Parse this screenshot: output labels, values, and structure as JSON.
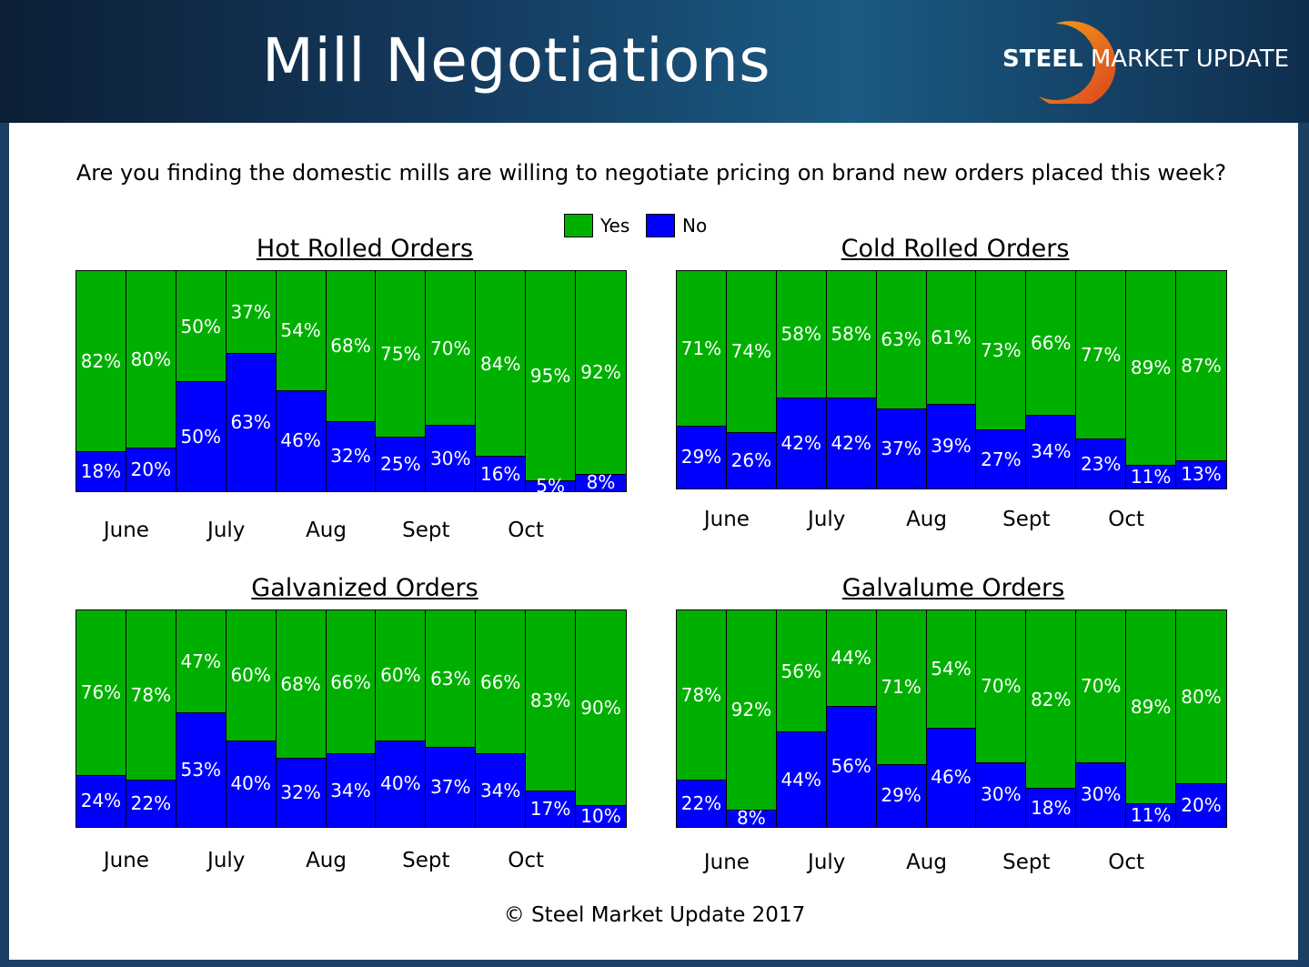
{
  "header": {
    "title": "Mill Negotiations",
    "logo_bold": "STEEL",
    "logo_rest": " MARKET UPDATE"
  },
  "question": "Are you finding the domestic mills are willing to negotiate pricing on brand new orders placed this week?",
  "legend": {
    "yes_label": "Yes",
    "no_label": "No",
    "yes_color": "#00b000",
    "no_color": "#0000ff"
  },
  "footer": "© Steel Market Update 2017",
  "chart_data": [
    {
      "type": "bar",
      "title": "Hot Rolled Orders",
      "months": [
        "June",
        "July",
        "Aug",
        "Sept",
        "Oct"
      ],
      "series": [
        {
          "name": "Yes",
          "values": [
            82,
            80,
            50,
            37,
            54,
            68,
            75,
            70,
            84,
            95,
            92
          ]
        },
        {
          "name": "No",
          "values": [
            18,
            20,
            50,
            63,
            46,
            32,
            25,
            30,
            16,
            5,
            8
          ]
        }
      ],
      "ylim": [
        0,
        100
      ]
    },
    {
      "type": "bar",
      "title": "Cold Rolled Orders",
      "months": [
        "June",
        "July",
        "Aug",
        "Sept",
        "Oct"
      ],
      "series": [
        {
          "name": "Yes",
          "values": [
            71,
            74,
            58,
            58,
            63,
            61,
            73,
            66,
            77,
            89,
            87
          ]
        },
        {
          "name": "No",
          "values": [
            29,
            26,
            42,
            42,
            37,
            39,
            27,
            34,
            23,
            11,
            13
          ]
        }
      ],
      "ylim": [
        0,
        100
      ]
    },
    {
      "type": "bar",
      "title": "Galvanized Orders",
      "months": [
        "June",
        "July",
        "Aug",
        "Sept",
        "Oct"
      ],
      "series": [
        {
          "name": "Yes",
          "values": [
            76,
            78,
            47,
            60,
            68,
            66,
            60,
            63,
            66,
            83,
            90
          ]
        },
        {
          "name": "No",
          "values": [
            24,
            22,
            53,
            40,
            32,
            34,
            40,
            37,
            34,
            17,
            10
          ]
        }
      ],
      "ylim": [
        0,
        100
      ]
    },
    {
      "type": "bar",
      "title": "Galvalume Orders",
      "months": [
        "June",
        "July",
        "Aug",
        "Sept",
        "Oct"
      ],
      "series": [
        {
          "name": "Yes",
          "values": [
            78,
            92,
            56,
            44,
            71,
            54,
            70,
            82,
            70,
            89,
            80
          ]
        },
        {
          "name": "No",
          "values": [
            22,
            8,
            44,
            56,
            29,
            46,
            30,
            18,
            30,
            11,
            20
          ]
        }
      ],
      "ylim": [
        0,
        100
      ]
    }
  ]
}
